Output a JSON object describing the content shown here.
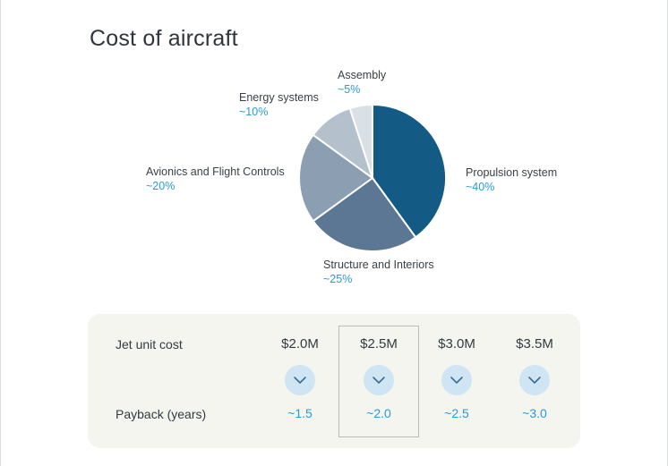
{
  "page": {
    "title": "Cost of aircraft"
  },
  "chart_data": {
    "type": "pie",
    "title": "",
    "slices": [
      {
        "name": "Propulsion system",
        "label": "~40%",
        "value": 40,
        "color": "#135a85"
      },
      {
        "name": "Structure and Interiors",
        "label": "~25%",
        "value": 25,
        "color": "#5b7794"
      },
      {
        "name": "Avionics and Flight Controls",
        "label": "~20%",
        "value": 20,
        "color": "#8c9fb2"
      },
      {
        "name": "Energy systems",
        "label": "~10%",
        "value": 10,
        "color": "#b4c1cd"
      },
      {
        "name": "Assembly",
        "label": "~5%",
        "value": 5,
        "color": "#d9e0e6"
      }
    ]
  },
  "cost_table": {
    "row_labels": {
      "cost": "Jet unit cost",
      "payback": "Payback (years)"
    },
    "selected_index": 1,
    "toggle_icon": "chevron-down-icon",
    "columns": [
      {
        "price": "$2.0M",
        "payback": "~1.5"
      },
      {
        "price": "$2.5M",
        "payback": "~2.0"
      },
      {
        "price": "$3.0M",
        "payback": "~2.5"
      },
      {
        "price": "$3.5M",
        "payback": "~3.0"
      }
    ]
  },
  "colors": {
    "accent_blue": "#2b9ad6",
    "toggle_bg": "#cfe5f4",
    "panel_bg": "#f4f5ef"
  }
}
